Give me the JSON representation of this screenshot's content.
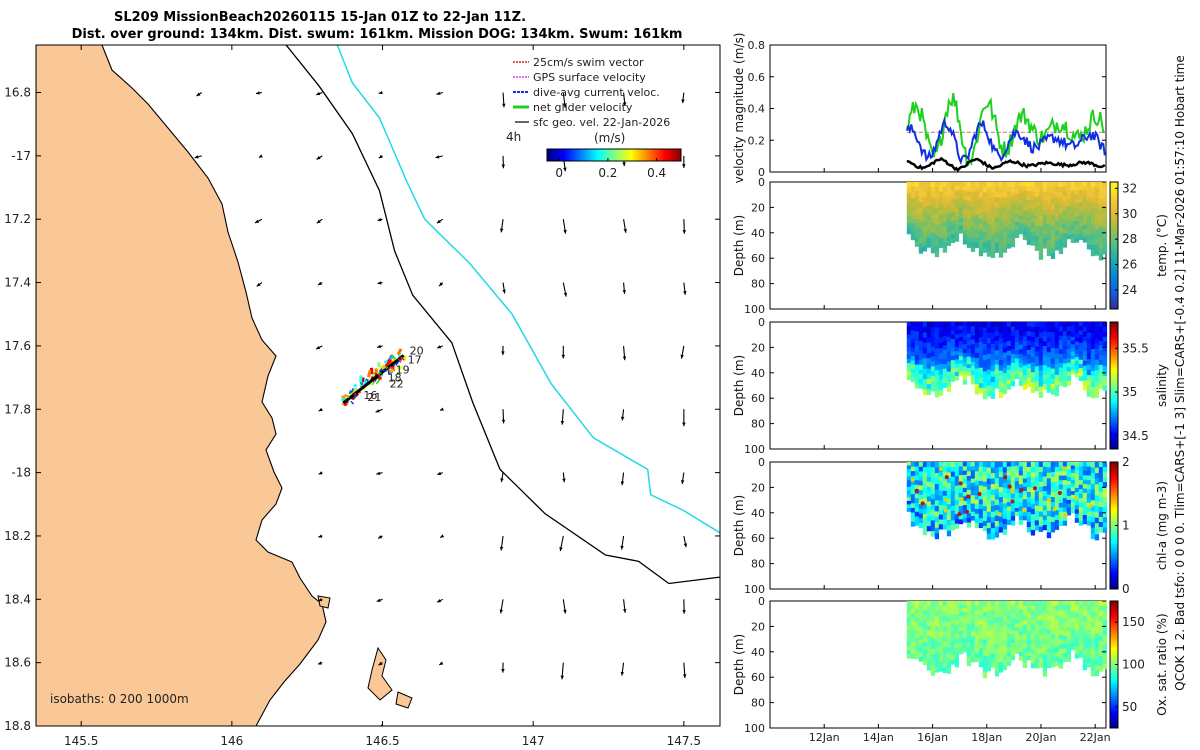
{
  "title": {
    "line1": "SL209 MissionBeach20260115 15-Jan 01Z to 22-Jan 11Z.",
    "line2": "Dist. over ground: 134km. Dist. swum: 161km. Mission DOG: 134km. Swum: 161km"
  },
  "side_text": "QCOK 1  2. Bad tsfo: 0  0  0  0. Tlim=CARS+[-1 3] Slim=CARS+[-0.4 0.2] 11-Mar-2026 01:57:10 Hobart time",
  "colors": {
    "land": "#F9C896",
    "isobath_200": "#000000",
    "isobath_1000": "#22D8E8",
    "track": "#000000"
  },
  "chart_data": [
    {
      "type": "map",
      "name": "glider track map",
      "xlim": [
        145.35,
        147.62
      ],
      "ylim": [
        -18.8,
        -16.65
      ],
      "xticks": [
        145.5,
        146,
        146.5,
        147,
        147.5
      ],
      "xtick_labels": [
        "145.5",
        "146",
        "146.5",
        "147",
        "147.5"
      ],
      "yticks": [
        -16.8,
        -17,
        -17.2,
        -17.4,
        -17.6,
        -17.8,
        -18,
        -18.2,
        -18.4,
        -18.6,
        -18.8
      ],
      "ytick_labels": [
        "16.8",
        "-17",
        "17.2",
        "17.4",
        "17.6",
        "17.8",
        "-18",
        "18.2",
        "18.4",
        "18.6",
        "18.8"
      ],
      "legend": [
        "25cm/s swim vector",
        "GPS surface velocity",
        "dive-avg current veloc.",
        "net glider velocity",
        "sfc geo. vel. 22-Jan-2026"
      ],
      "legend_colors": [
        "#E02020",
        "#E040E0",
        "#1030E0",
        "#20D020",
        "#000000"
      ],
      "legend_note": "4h",
      "colorbar": {
        "label": "(m/s)",
        "ticks": [
          0,
          0.2,
          0.4
        ],
        "tick_labels": [
          "0",
          "0.2",
          "0.4"
        ],
        "range": [
          -0.05,
          0.5
        ]
      },
      "isobath_label": "isobaths: 0   200  1000m",
      "track_start": [
        146.37,
        -17.78
      ],
      "track_end": [
        146.57,
        -17.63
      ],
      "track_day_labels": [
        "20",
        "17",
        "19",
        "18",
        "22",
        "16",
        "21"
      ],
      "isobath_200": [
        [
          146.18,
          -16.65
        ],
        [
          146.29,
          -16.78
        ],
        [
          146.4,
          -16.93
        ],
        [
          146.49,
          -17.11
        ],
        [
          146.54,
          -17.3
        ],
        [
          146.6,
          -17.44
        ],
        [
          146.73,
          -17.59
        ],
        [
          146.8,
          -17.78
        ],
        [
          146.89,
          -17.99
        ],
        [
          147.04,
          -18.13
        ],
        [
          147.24,
          -18.26
        ],
        [
          147.35,
          -18.28
        ],
        [
          147.45,
          -18.35
        ],
        [
          147.62,
          -18.33
        ]
      ],
      "isobath_1000": [
        [
          146.35,
          -16.65
        ],
        [
          146.4,
          -16.77
        ],
        [
          146.49,
          -16.88
        ],
        [
          146.58,
          -17.08
        ],
        [
          146.64,
          -17.2
        ],
        [
          146.79,
          -17.34
        ],
        [
          146.93,
          -17.5
        ],
        [
          147.06,
          -17.72
        ],
        [
          147.2,
          -17.89
        ],
        [
          147.38,
          -17.99
        ],
        [
          147.39,
          -18.07
        ],
        [
          147.5,
          -18.12
        ],
        [
          147.62,
          -18.19
        ]
      ],
      "vector_grid_lon": [
        145.5,
        145.7,
        145.9,
        146.1,
        146.3,
        146.5,
        146.7,
        146.9,
        147.1,
        147.3,
        147.5
      ],
      "vector_grid_lat": [
        -16.8,
        -17.0,
        -17.2,
        -17.4,
        -17.6,
        -17.8,
        -18.0,
        -18.2,
        -18.4,
        -18.6,
        -18.8
      ]
    },
    {
      "type": "line",
      "name": "velocity magnitude",
      "ylabel": "velocity magnitude (m/s)",
      "ylim": [
        0,
        0.8
      ],
      "yticks": [
        0,
        0.2,
        0.4,
        0.6,
        0.8
      ],
      "ytick_labels": [
        "0",
        "0.2",
        "0.4",
        "0.6",
        "0.8"
      ],
      "xlim_day": [
        10,
        22.4
      ],
      "data_start_day": 15.05,
      "series": [
        {
          "name": "net glider velocity",
          "color": "#20D020",
          "mean": 0.27,
          "amp": 0.2
        },
        {
          "name": "dive-avg current veloc.",
          "color": "#1030E0",
          "mean": 0.19,
          "amp": 0.12
        },
        {
          "name": "sfc geo. vel.",
          "color": "#000000",
          "mean": 0.05,
          "amp": 0.03
        },
        {
          "name": "swim reference",
          "color": "#D08080",
          "value": 0.25
        }
      ]
    },
    {
      "type": "heatmap",
      "name": "temperature section",
      "ylabel": "Depth (m)",
      "ylim": [
        0,
        100
      ],
      "yticks": [
        0,
        20,
        40,
        60,
        80,
        100
      ],
      "colorbar_label": "temp. (°C)",
      "clim": [
        22.5,
        32.5
      ],
      "colorbar_ticks": [
        24,
        26,
        28,
        30,
        32
      ],
      "base_value": 28.5,
      "surface_value": 31.5,
      "deep_value": 27
    },
    {
      "type": "heatmap",
      "name": "salinity section",
      "ylabel": "Depth (m)",
      "ylim": [
        0,
        100
      ],
      "yticks": [
        0,
        20,
        40,
        60,
        80,
        100
      ],
      "colorbar_label": "salinity",
      "clim": [
        34.35,
        35.8
      ],
      "colorbar_ticks": [
        34.5,
        35,
        35.5
      ],
      "base_value": 34.6,
      "surface_value": 34.5,
      "deep_value": 35.0
    },
    {
      "type": "heatmap",
      "name": "chlorophyll section",
      "ylabel": "Depth (m)",
      "ylim": [
        0,
        100
      ],
      "yticks": [
        0,
        20,
        40,
        60,
        80,
        100
      ],
      "colorbar_label": "chl-a  (mg m-3)",
      "clim": [
        0,
        2
      ],
      "colorbar_ticks": [
        0,
        1,
        2
      ],
      "base_value": 0.9,
      "surface_value": 0.7,
      "deep_value": 0.6
    },
    {
      "type": "heatmap",
      "name": "oxygen saturation section",
      "ylabel": "Depth (m)",
      "ylim": [
        0,
        100
      ],
      "yticks": [
        0,
        20,
        40,
        60,
        80,
        100
      ],
      "colorbar_label": "Ox. sat. ratio (%)",
      "clim": [
        25,
        175
      ],
      "colorbar_ticks": [
        50,
        100,
        150
      ],
      "base_value": 98,
      "surface_value": 103,
      "deep_value": 95
    }
  ],
  "time_axis": {
    "ticks": [
      12,
      14,
      16,
      18,
      20,
      22
    ],
    "tick_labels": [
      "12Jan",
      "14Jan",
      "16Jan",
      "18Jan",
      "20Jan",
      "22Jan"
    ]
  }
}
